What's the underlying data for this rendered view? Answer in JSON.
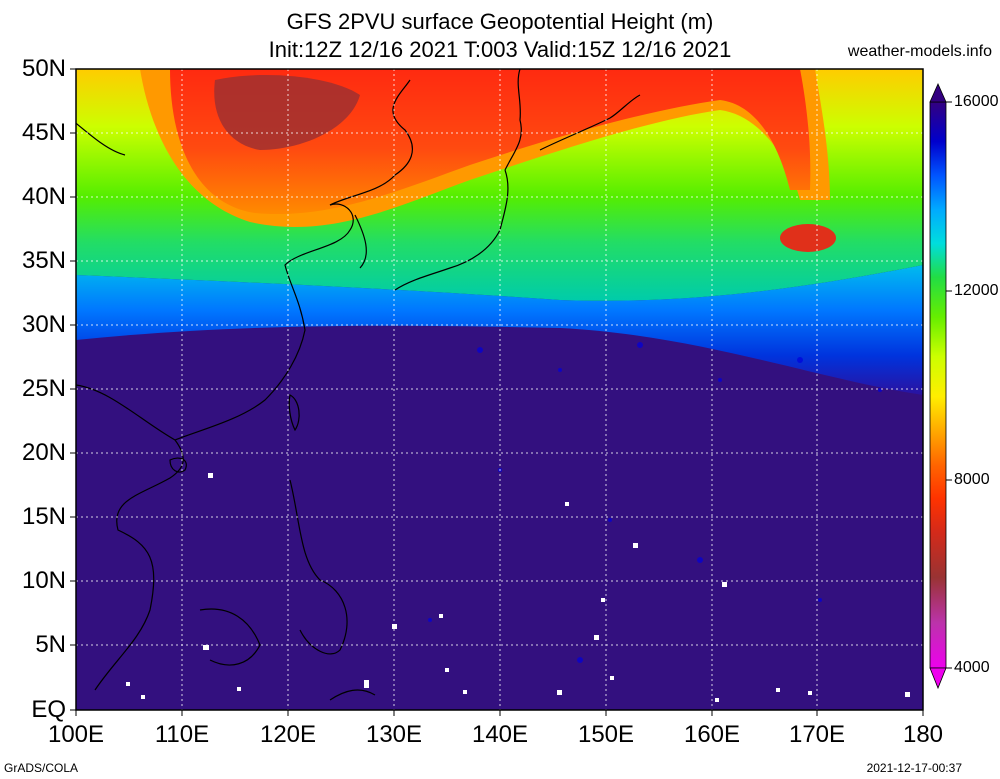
{
  "title": {
    "line1": "GFS 2PVU surface Geopotential Height (m)",
    "line2": "Init:12Z 12/16 2021 T:003 Valid:15Z 12/16 2021"
  },
  "site": "weather-models.info",
  "lat_labels": [
    "50N",
    "45N",
    "40N",
    "35N",
    "30N",
    "25N",
    "20N",
    "15N",
    "10N",
    "5N",
    "EQ"
  ],
  "lon_labels": [
    "100E",
    "110E",
    "120E",
    "130E",
    "140E",
    "150E",
    "160E",
    "170E",
    "180"
  ],
  "colorbar": {
    "labels": [
      "16000",
      "12000",
      "8000",
      "4000"
    ],
    "colors": [
      "#ee00ee",
      "#cc33cc",
      "#993333",
      "#b0302a",
      "#d42a1a",
      "#f01e0e",
      "#ff3300",
      "#ff6600",
      "#ff9900",
      "#ffcc00",
      "#ffee00",
      "#ddff00",
      "#aaff00",
      "#66ee00",
      "#22dd22",
      "#00cc88",
      "#00dddd",
      "#00bbff",
      "#0099ff",
      "#0066ff",
      "#0033ee",
      "#0000cc",
      "#1a0099",
      "#330080"
    ]
  },
  "map": {
    "extent_lon": [
      100,
      180
    ],
    "extent_lat": [
      0,
      50
    ],
    "background_color": "#33107f"
  },
  "footer": {
    "left": "GrADS/COLA",
    "right": "2021-12-17-00:37"
  }
}
